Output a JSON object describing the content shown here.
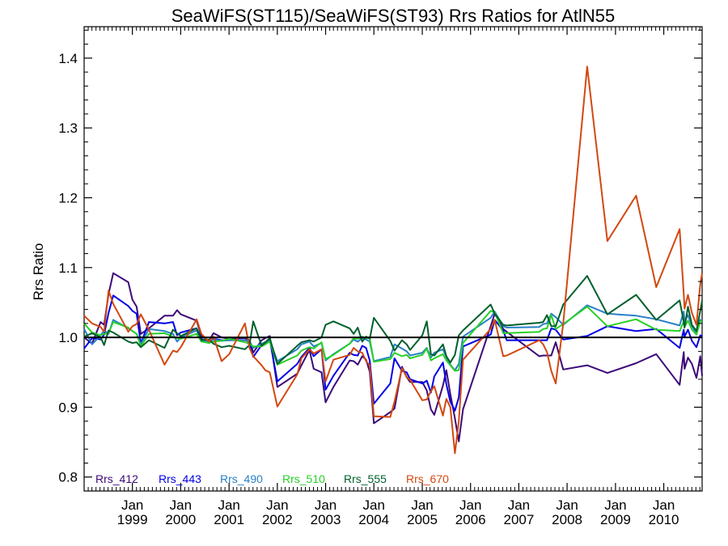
{
  "chart_data": {
    "type": "line",
    "title": "SeaWiFS(ST115)/SeaWiFS(ST93)  Rrs Ratios for AtlN55",
    "xlabel": "",
    "ylabel": "Rrs Ratio",
    "ylim": [
      0.78,
      1.445
    ],
    "xlim": [
      "1998-01-01",
      "2010-10-18"
    ],
    "y_ticks": [
      0.8,
      0.9,
      1.0,
      1.1,
      1.2,
      1.3,
      1.4
    ],
    "y_tick_labels": [
      "0.8",
      "0.9",
      "1.0",
      "1.1",
      "1.2",
      "1.3",
      "1.4"
    ],
    "x_ticks": [
      {
        "line1": "Jan",
        "line2": "1999",
        "date": "1999-01-01"
      },
      {
        "line1": "Jan",
        "line2": "2000",
        "date": "2000-01-01"
      },
      {
        "line1": "Jan",
        "line2": "2001",
        "date": "2001-01-01"
      },
      {
        "line1": "Jan",
        "line2": "2002",
        "date": "2002-01-01"
      },
      {
        "line1": "Jan",
        "line2": "2003",
        "date": "2003-01-01"
      },
      {
        "line1": "Jan",
        "line2": "2004",
        "date": "2004-01-01"
      },
      {
        "line1": "Jan",
        "line2": "2005",
        "date": "2005-01-01"
      },
      {
        "line1": "Jan",
        "line2": "2006",
        "date": "2006-01-01"
      },
      {
        "line1": "Jan",
        "line2": "2007",
        "date": "2007-01-01"
      },
      {
        "line1": "Jan",
        "line2": "2008",
        "date": "2008-01-01"
      },
      {
        "line1": "Jan",
        "line2": "2009",
        "date": "2009-01-01"
      },
      {
        "line1": "Jan",
        "line2": "2010",
        "date": "2010-01-01"
      }
    ],
    "reference_line": {
      "y": 1.0,
      "color": "#000000"
    },
    "legend_position": "bottom-left",
    "x": [
      "1998-01-01",
      "1998-03-02",
      "1998-05-06",
      "1998-06-01",
      "1998-07-05",
      "1998-08-09",
      "1998-12-01",
      "1999-01-01",
      "1999-02-02",
      "1999-03-06",
      "1999-05-06",
      "1999-09-01",
      "1999-11-04",
      "1999-12-05",
      "2000-01-02",
      "2000-05-01",
      "2000-06-06",
      "2000-08-02",
      "2000-09-05",
      "2000-11-06",
      "2001-01-02",
      "2001-05-01",
      "2001-06-04",
      "2001-07-03",
      "2001-09-04",
      "2001-10-02",
      "2001-11-05",
      "2002-01-01",
      "2002-06-01",
      "2002-07-02",
      "2002-09-01",
      "2002-10-03",
      "2002-12-01",
      "2003-01-01",
      "2003-03-01",
      "2003-07-02",
      "2003-08-01",
      "2003-09-01",
      "2003-10-05",
      "2003-11-03",
      "2003-12-01",
      "2004-01-01",
      "2004-05-04",
      "2004-06-05",
      "2004-08-01",
      "2004-09-05",
      "2004-10-01",
      "2005-01-01",
      "2005-02-04",
      "2005-03-07",
      "2005-04-02",
      "2005-06-06",
      "2005-07-02",
      "2005-08-01",
      "2005-09-05",
      "2005-10-04",
      "2005-11-05",
      "2006-06-02",
      "2006-07-03",
      "2006-09-05",
      "2006-10-01",
      "2007-06-05",
      "2007-07-04",
      "2007-08-02",
      "2007-09-03",
      "2007-10-07",
      "2007-12-03",
      "2008-06-01",
      "2008-11-01",
      "2009-06-06",
      "2009-11-05",
      "2010-05-01",
      "2010-06-01",
      "2010-06-07",
      "2010-07-03",
      "2010-08-02",
      "2010-09-05",
      "2010-10-04",
      "2010-10-18"
    ],
    "series": [
      {
        "name": "Rrs_412",
        "color": "#3C0A78",
        "values": [
          1.0,
          0.991,
          1.022,
          1.018,
          1.062,
          1.092,
          1.079,
          1.054,
          1.044,
          1.005,
          1.013,
          1.031,
          1.031,
          1.039,
          1.033,
          1.024,
          1.002,
          0.995,
          1.006,
          1.0,
          0.998,
          0.999,
          0.996,
          0.978,
          0.996,
          0.999,
          1.002,
          0.929,
          0.948,
          0.96,
          0.982,
          0.955,
          0.95,
          0.907,
          0.929,
          0.967,
          0.966,
          0.961,
          0.973,
          0.968,
          0.951,
          0.877,
          0.893,
          0.898,
          0.958,
          0.943,
          0.936,
          0.936,
          0.924,
          0.897,
          0.889,
          0.931,
          0.953,
          0.919,
          0.884,
          0.851,
          0.897,
          1.016,
          1.034,
          1.012,
          1.008,
          0.973,
          0.974,
          0.974,
          0.974,
          0.993,
          0.954,
          0.96,
          0.949,
          0.963,
          0.976,
          0.932,
          0.979,
          0.955,
          0.971,
          0.962,
          0.942,
          0.973,
          0.945
        ]
      },
      {
        "name": "Rrs_443",
        "color": "#0000E6",
        "values": [
          0.984,
          0.999,
          0.997,
          1.004,
          1.035,
          1.06,
          1.045,
          1.038,
          1.034,
          0.991,
          1.022,
          1.02,
          1.022,
          1.003,
          1.007,
          1.013,
          0.998,
          0.992,
          0.998,
          0.996,
          0.996,
          0.996,
          0.994,
          0.972,
          0.989,
          0.992,
          0.997,
          0.937,
          0.962,
          0.972,
          0.985,
          0.973,
          0.983,
          0.925,
          0.945,
          0.978,
          0.975,
          0.974,
          0.988,
          0.985,
          0.967,
          0.905,
          0.934,
          0.97,
          0.952,
          0.95,
          0.94,
          0.934,
          0.938,
          0.921,
          0.944,
          0.964,
          0.933,
          0.908,
          0.895,
          0.914,
          0.987,
          1.004,
          1.025,
          1.01,
          0.996,
          0.996,
          0.996,
          0.996,
          1.013,
          1.011,
          0.997,
          1.002,
          1.016,
          1.009,
          1.012,
          0.985,
          1.011,
          1.001,
          1.011,
          0.995,
          0.986,
          1.003,
          1.002
        ]
      },
      {
        "name": "Rrs_490",
        "color": "#2880C8",
        "values": [
          1.012,
          0.99,
          1.003,
          1.01,
          1.005,
          1.025,
          1.013,
          1.009,
          1.005,
          0.99,
          1.012,
          1.009,
          1.005,
          0.994,
          1.0,
          1.01,
          0.996,
          0.994,
          0.997,
          0.995,
          0.996,
          0.996,
          0.995,
          0.985,
          0.991,
          0.993,
          0.995,
          0.966,
          0.983,
          0.99,
          0.994,
          0.987,
          0.992,
          0.967,
          0.976,
          0.991,
          0.997,
          0.994,
          0.999,
          0.997,
          0.994,
          0.966,
          0.972,
          0.99,
          0.984,
          0.98,
          0.974,
          0.978,
          0.985,
          0.971,
          0.978,
          0.983,
          0.972,
          0.961,
          0.953,
          0.962,
          1.001,
          1.028,
          1.037,
          1.016,
          1.014,
          1.015,
          1.019,
          1.02,
          1.034,
          1.029,
          1.018,
          1.046,
          1.034,
          1.031,
          1.026,
          1.017,
          1.037,
          1.023,
          1.032,
          1.016,
          1.006,
          1.025,
          1.024
        ]
      },
      {
        "name": "Rrs_510",
        "color": "#28D028",
        "values": [
          1.02,
          1.007,
          1.003,
          1.005,
          1.006,
          1.022,
          1.014,
          1.009,
          1.005,
          0.987,
          1.005,
          1.006,
          1.001,
          0.999,
          0.998,
          1.005,
          0.994,
          0.992,
          0.994,
          0.995,
          0.998,
          0.993,
          0.991,
          0.987,
          0.987,
          0.99,
          0.994,
          0.961,
          0.974,
          0.981,
          0.986,
          0.984,
          0.993,
          0.969,
          0.975,
          0.991,
          0.999,
          0.998,
          1.001,
          0.999,
          0.999,
          0.965,
          0.969,
          0.978,
          0.973,
          0.975,
          0.97,
          0.975,
          0.984,
          0.967,
          0.97,
          0.976,
          0.967,
          0.96,
          0.952,
          0.953,
          0.992,
          1.038,
          1.036,
          1.006,
          1.006,
          1.008,
          1.012,
          1.013,
          1.032,
          1.012,
          1.019,
          1.044,
          1.016,
          1.026,
          1.011,
          1.009,
          1.023,
          1.015,
          1.024,
          1.011,
          1.004,
          1.023,
          1.023
        ]
      },
      {
        "name": "Rrs_555",
        "color": "#00602C",
        "values": [
          1.001,
          1.006,
          1.0,
          0.989,
          1.01,
          1.007,
          0.994,
          0.992,
          0.993,
          0.986,
          0.996,
          0.985,
          1.011,
          1.006,
          1.002,
          1.013,
          0.996,
          0.997,
          0.991,
          0.986,
          0.988,
          0.983,
          0.989,
          1.023,
          0.988,
          0.993,
          0.999,
          0.962,
          0.988,
          0.993,
          0.996,
          0.994,
          1.0,
          1.018,
          1.023,
          1.013,
          1.005,
          1.014,
          0.994,
          1.001,
          0.998,
          1.028,
          0.995,
          0.981,
          0.996,
          0.99,
          0.982,
          1.003,
          1.023,
          0.976,
          0.974,
          0.99,
          0.973,
          0.964,
          0.975,
          1.003,
          1.01,
          1.047,
          1.034,
          1.018,
          1.017,
          1.021,
          1.022,
          1.032,
          1.016,
          1.016,
          1.047,
          1.088,
          1.033,
          1.061,
          1.025,
          1.053,
          1.022,
          1.014,
          1.044,
          1.018,
          1.009,
          1.038,
          1.053
        ]
      },
      {
        "name": "Rrs_670",
        "color": "#D24810",
        "values": [
          1.031,
          1.02,
          1.015,
          1.008,
          1.067,
          1.048,
          1.008,
          1.016,
          1.019,
          1.033,
          1.011,
          0.961,
          0.981,
          0.979,
          0.986,
          1.026,
          1.005,
          0.994,
          1.001,
          0.966,
          0.976,
          1.02,
          0.985,
          0.973,
          0.96,
          0.953,
          0.95,
          0.901,
          0.947,
          0.97,
          0.983,
          0.977,
          0.983,
          0.937,
          0.968,
          0.975,
          0.985,
          0.98,
          0.978,
          0.966,
          0.96,
          0.887,
          0.886,
          0.908,
          0.956,
          0.943,
          0.939,
          0.91,
          0.911,
          0.923,
          0.93,
          0.888,
          0.912,
          0.9,
          0.834,
          0.88,
          0.968,
          1.012,
          1.025,
          0.973,
          0.974,
          0.996,
          0.99,
          0.979,
          0.952,
          0.934,
          1.02,
          1.388,
          1.138,
          1.203,
          1.072,
          1.155,
          1.062,
          1.041,
          1.061,
          1.035,
          1.018,
          1.076,
          1.092
        ]
      }
    ]
  }
}
